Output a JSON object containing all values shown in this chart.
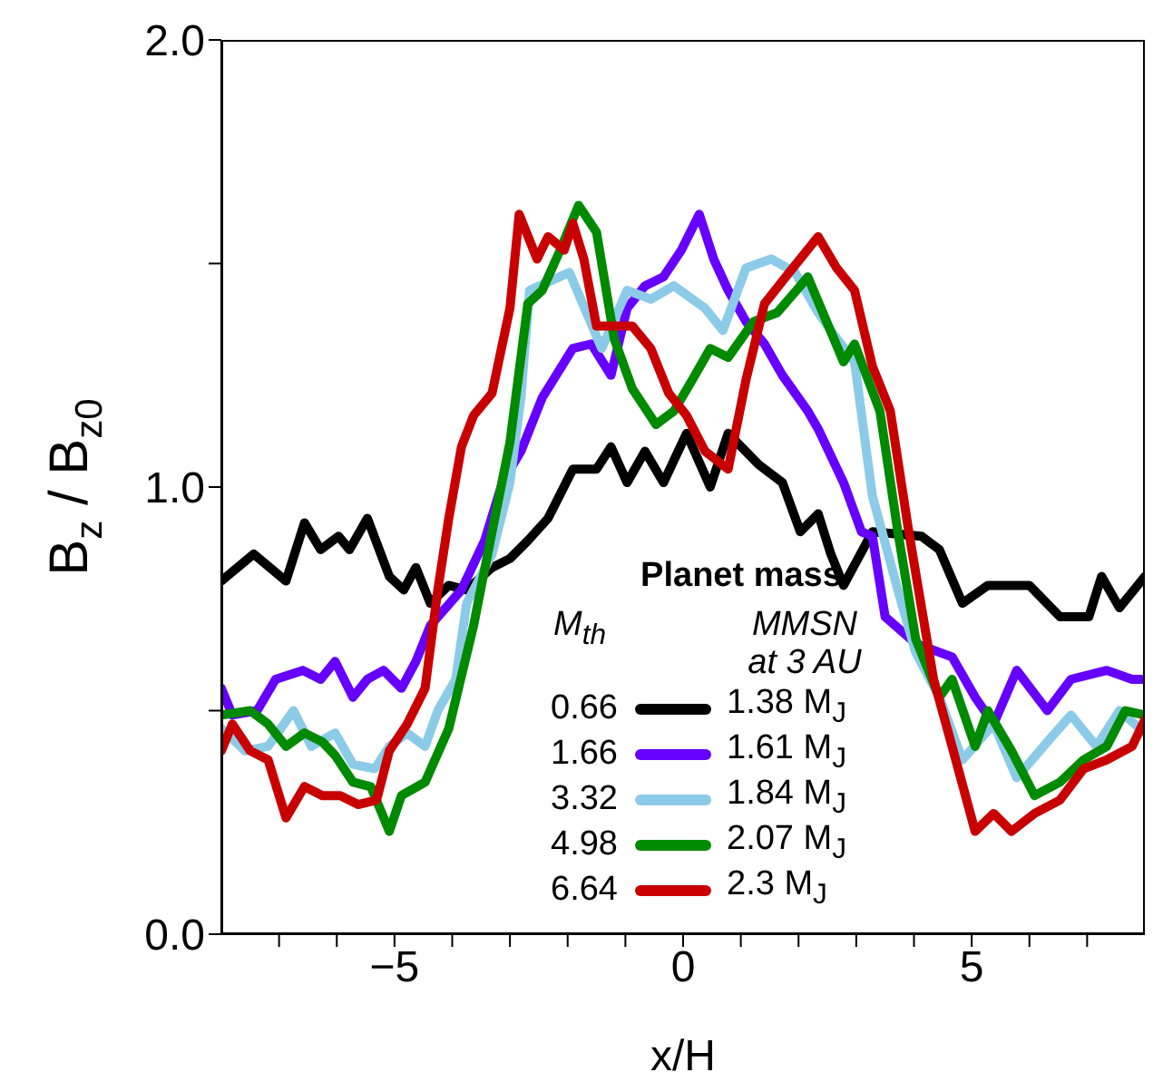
{
  "chart_data": {
    "type": "line",
    "xlabel": "x/H",
    "ylabel": "B$_{z}$ / B$_{z0}$",
    "legend_title": "Planet mass",
    "legend": "bottom",
    "line_style": "solid",
    "marker": "none",
    "xlim": [
      -8,
      8
    ],
    "ylim": [
      0,
      2
    ],
    "xticks": [
      {
        "value": -7,
        "label": null
      },
      {
        "value": -6,
        "label": null
      },
      {
        "value": -5,
        "label": "−5"
      },
      {
        "value": -4,
        "label": null
      },
      {
        "value": -3,
        "label": null
      },
      {
        "value": -2,
        "label": null
      },
      {
        "value": -1,
        "label": null
      },
      0,
      {
        "value": 1,
        "label": null
      },
      {
        "value": 2,
        "label": null
      },
      {
        "value": 3,
        "label": null
      },
      {
        "value": 4,
        "label": null
      },
      5,
      {
        "value": 6,
        "label": null
      },
      {
        "value": 7,
        "label": null
      }
    ],
    "yticks": [
      {
        "value": 0,
        "label": "0.0"
      },
      {
        "value": 0.5,
        "label": null
      },
      {
        "value": 1,
        "label": "1.0"
      },
      {
        "value": 1.5,
        "label": null
      },
      {
        "value": 2,
        "label": "2.0"
      }
    ],
    "annotations": [
      "M$_{th}$",
      "MMSN at 3 AU",
      "0.66",
      "1.66",
      "3.32",
      "4.98",
      "6.64"
    ],
    "series": [
      {
        "name": "1.38 M$_{J}$",
        "color": "#000000",
        "x": [
          -8,
          -7.44,
          -6.88,
          -6.56,
          -6.28,
          -5.97,
          -5.78,
          -5.47,
          -5.09,
          -4.84,
          -4.63,
          -4.38,
          -4.06,
          -3.75,
          -3.31,
          -3,
          -2.69,
          -2.34,
          -1.91,
          -1.5,
          -1.25,
          -0.97,
          -0.66,
          -0.34,
          0.06,
          0.47,
          0.78,
          1.31,
          1.72,
          2.03,
          2.34,
          2.56,
          2.78,
          3.28,
          4.13,
          4.44,
          4.84,
          5.28,
          6,
          6.53,
          7.03,
          7.25,
          7.56,
          8
        ],
        "values": [
          0.79,
          0.85,
          0.79,
          0.92,
          0.86,
          0.89,
          0.86,
          0.93,
          0.8,
          0.77,
          0.82,
          0.74,
          0.78,
          0.77,
          0.82,
          0.84,
          0.88,
          0.93,
          1.04,
          1.04,
          1.09,
          1.01,
          1.08,
          1.01,
          1.12,
          1,
          1.12,
          1.05,
          1.01,
          0.9,
          0.94,
          0.85,
          0.78,
          0.9,
          0.89,
          0.86,
          0.74,
          0.78,
          0.78,
          0.71,
          0.71,
          0.8,
          0.73,
          0.8
        ]
      },
      {
        "name": "1.61 M$_{J}$",
        "color": "#6600ff",
        "x": [
          -8,
          -7.81,
          -7.38,
          -7.06,
          -6.59,
          -6.28,
          -6.03,
          -5.72,
          -5.47,
          -5.19,
          -4.88,
          -4.63,
          -4.38,
          -3.84,
          -3.44,
          -3.13,
          -2.81,
          -2.44,
          -1.91,
          -1.59,
          -1.25,
          -0.97,
          -0.66,
          -0.34,
          -0.03,
          0.28,
          0.53,
          0.78,
          1.09,
          1.41,
          1.72,
          2.16,
          2.34,
          2.78,
          3.09,
          3.28,
          3.5,
          4.03,
          4.66,
          5.06,
          5.38,
          5.78,
          6.31,
          6.72,
          7.34,
          7.78,
          8
        ],
        "values": [
          0.55,
          0.49,
          0.5,
          0.57,
          0.59,
          0.57,
          0.61,
          0.53,
          0.57,
          0.59,
          0.55,
          0.61,
          0.69,
          0.77,
          0.88,
          1.01,
          1.08,
          1.2,
          1.31,
          1.32,
          1.25,
          1.4,
          1.45,
          1.47,
          1.53,
          1.61,
          1.51,
          1.44,
          1.37,
          1.32,
          1.25,
          1.17,
          1.13,
          1.01,
          0.9,
          0.89,
          0.71,
          0.65,
          0.62,
          0.53,
          0.47,
          0.59,
          0.5,
          0.57,
          0.59,
          0.57,
          0.57
        ]
      },
      {
        "name": "1.84 M$_{J}$",
        "color": "#8ccbe8",
        "x": [
          -8,
          -7.59,
          -7.19,
          -6.75,
          -6.44,
          -6.03,
          -5.72,
          -5.34,
          -5.09,
          -4.78,
          -4.47,
          -4.25,
          -3.94,
          -3.75,
          -3.31,
          -3,
          -2.81,
          -2.66,
          -1.97,
          -1.41,
          -0.97,
          -0.56,
          -0.16,
          0.38,
          0.69,
          1.09,
          1.53,
          1.94,
          2.34,
          2.56,
          2.97,
          3.28,
          3.72,
          4.03,
          4.44,
          4.84,
          5.38,
          5.78,
          6.31,
          6.72,
          7.16,
          7.56,
          8
        ],
        "values": [
          0.46,
          0.41,
          0.42,
          0.5,
          0.42,
          0.45,
          0.38,
          0.37,
          0.42,
          0.45,
          0.42,
          0.5,
          0.57,
          0.74,
          0.85,
          1.01,
          1.2,
          1.44,
          1.48,
          1.31,
          1.44,
          1.42,
          1.45,
          1.4,
          1.35,
          1.49,
          1.51,
          1.48,
          1.39,
          1.35,
          1.28,
          0.98,
          0.77,
          0.63,
          0.53,
          0.39,
          0.47,
          0.35,
          0.43,
          0.49,
          0.42,
          0.5,
          0.45
        ]
      },
      {
        "name": "2.07 M$_{J}$",
        "color": "#008a00",
        "x": [
          -8,
          -7.5,
          -7.19,
          -6.88,
          -6.56,
          -6.25,
          -6.03,
          -5.72,
          -5.41,
          -5.09,
          -4.88,
          -4.47,
          -4.06,
          -3.63,
          -3.31,
          -3,
          -2.69,
          -2.44,
          -2.13,
          -1.81,
          -1.5,
          -1.19,
          -0.88,
          -0.47,
          -0.16,
          0.16,
          0.47,
          0.78,
          1.22,
          1.63,
          2.03,
          2.16,
          2.78,
          2.97,
          3.41,
          3.72,
          4.03,
          4.44,
          4.66,
          5.06,
          5.28,
          5.69,
          6.09,
          6.53,
          6.94,
          7.34,
          7.66,
          8
        ],
        "values": [
          0.49,
          0.5,
          0.47,
          0.42,
          0.45,
          0.43,
          0.4,
          0.34,
          0.33,
          0.23,
          0.31,
          0.34,
          0.46,
          0.69,
          0.9,
          1.1,
          1.41,
          1.44,
          1.53,
          1.63,
          1.57,
          1.33,
          1.22,
          1.14,
          1.17,
          1.24,
          1.31,
          1.29,
          1.37,
          1.39,
          1.45,
          1.47,
          1.28,
          1.32,
          1.17,
          0.9,
          0.66,
          0.53,
          0.57,
          0.42,
          0.5,
          0.41,
          0.31,
          0.34,
          0.39,
          0.42,
          0.5,
          0.49
        ]
      },
      {
        "name": "2.3 M$_{J}$",
        "color": "#c80000",
        "x": [
          -8,
          -7.81,
          -7.5,
          -7.19,
          -6.88,
          -6.56,
          -6.25,
          -5.94,
          -5.63,
          -5.31,
          -5.09,
          -4.78,
          -4.47,
          -4.25,
          -4.06,
          -3.84,
          -3.63,
          -3.31,
          -3,
          -2.84,
          -2.53,
          -2.34,
          -2.06,
          -1.91,
          -1.72,
          -1.5,
          -1.19,
          -0.88,
          -0.56,
          -0.25,
          0.06,
          0.38,
          0.78,
          1.09,
          1.41,
          1.84,
          2.34,
          2.66,
          2.97,
          3.28,
          3.59,
          3.91,
          4.34,
          4.66,
          5.06,
          5.38,
          5.69,
          6.09,
          6.53,
          6.94,
          7.34,
          7.78,
          8
        ],
        "values": [
          0.41,
          0.47,
          0.41,
          0.39,
          0.26,
          0.33,
          0.31,
          0.31,
          0.29,
          0.3,
          0.41,
          0.47,
          0.55,
          0.77,
          0.93,
          1.09,
          1.16,
          1.21,
          1.4,
          1.61,
          1.51,
          1.56,
          1.53,
          1.59,
          1.51,
          1.36,
          1.36,
          1.36,
          1.31,
          1.21,
          1.16,
          1.08,
          1.04,
          1.24,
          1.41,
          1.48,
          1.56,
          1.49,
          1.44,
          1.27,
          1.17,
          0.9,
          0.57,
          0.42,
          0.23,
          0.27,
          0.23,
          0.27,
          0.3,
          0.37,
          0.39,
          0.42,
          0.48
        ]
      }
    ]
  }
}
